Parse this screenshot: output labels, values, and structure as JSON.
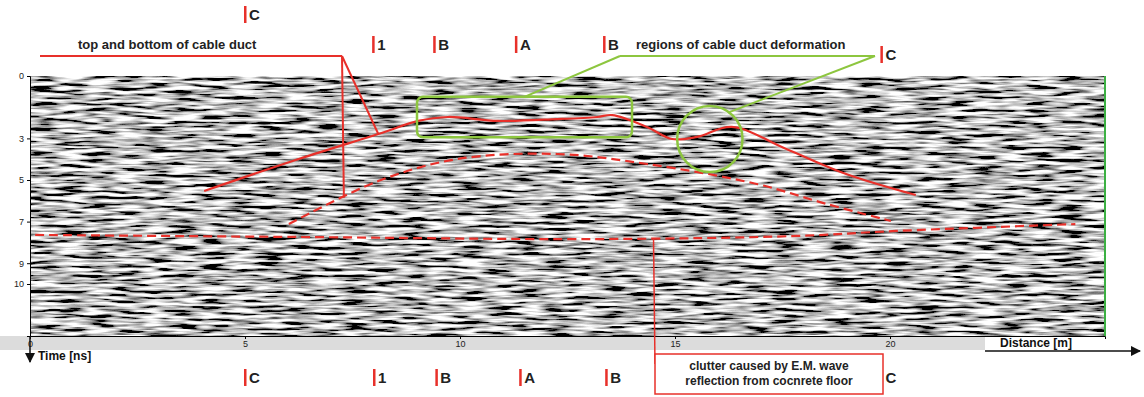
{
  "chart_data": {
    "type": "line",
    "x_label": "Distance [m]",
    "y_label": "Time [ns]",
    "xlim": [
      0,
      25
    ],
    "ylim": [
      0,
      12.5
    ],
    "xticks": [
      0,
      5,
      10,
      15,
      20
    ],
    "yticks": [
      0,
      3,
      5,
      7,
      9,
      10
    ],
    "series": [
      {
        "color": "#e8302a",
        "line_style": "solid",
        "x": [
          4.05,
          6.25,
          8.1,
          9.03,
          9.72,
          10.88,
          12.27,
          13.19,
          13.54,
          14.35,
          14.93,
          15.51,
          16.32,
          17.59,
          18.98,
          20.6
        ],
        "values": [
          5.53,
          3.99,
          2.79,
          2.16,
          1.97,
          2.16,
          2.07,
          1.97,
          1.88,
          2.45,
          3.03,
          2.93,
          2.45,
          3.51,
          4.71,
          5.72
        ]
      },
      {
        "color": "#e8302a",
        "line_style": "dashed",
        "x": [
          6.02,
          8.1,
          9.95,
          12.27,
          14.35,
          16.9,
          18.52,
          20.02
        ],
        "values": [
          7.12,
          5.05,
          3.99,
          3.75,
          4.23,
          5.19,
          6.15,
          6.97
        ]
      },
      {
        "color": "#e8302a",
        "line_style": "dashed",
        "x": [
          0.12,
          6.25,
          13.19,
          17.82,
          20.14,
          24.31
        ],
        "values": [
          7.64,
          7.74,
          7.84,
          7.69,
          7.45,
          7.12
        ]
      }
    ],
    "sections": {
      "top": [
        {
          "label": "C",
          "x": 5.0
        },
        {
          "label": "1",
          "x": 7.98
        },
        {
          "label": "B",
          "x": 9.4
        },
        {
          "label": "A",
          "x": 11.3
        },
        {
          "label": "B",
          "x": 13.35
        },
        {
          "label": "C",
          "x": 19.8
        }
      ],
      "bottom": [
        {
          "label": "C",
          "x": 5.0
        },
        {
          "label": "1",
          "x": 8.0
        },
        {
          "label": "B",
          "x": 9.45
        },
        {
          "label": "A",
          "x": 11.4
        },
        {
          "label": "B",
          "x": 13.4
        },
        {
          "label": "C",
          "x": 19.8
        }
      ]
    },
    "annotations": {
      "duct": {
        "text": "top and bottom of cable duct",
        "color": "#e8302a",
        "targets": [
          {
            "x": 8.1,
            "y": 2.79
          },
          {
            "x": 7.3,
            "y": 5.85
          }
        ]
      },
      "deformation": {
        "text": "regions of cable duct deformation",
        "color": "#8dc63f",
        "regions": [
          {
            "shape": "box",
            "x": [
              9.0,
              14.0
            ],
            "y": [
              1.0,
              2.95
            ]
          },
          {
            "shape": "circle",
            "x": [
              15.05,
              16.57
            ],
            "y": [
              1.44,
              4.62
            ]
          }
        ]
      },
      "clutter": {
        "lines": [
          "clutter caused by E.M. wave",
          "reflection from cocnrete floor"
        ],
        "color": "#e8302a",
        "target": {
          "x": 14.5,
          "y": 7.8
        }
      }
    }
  }
}
